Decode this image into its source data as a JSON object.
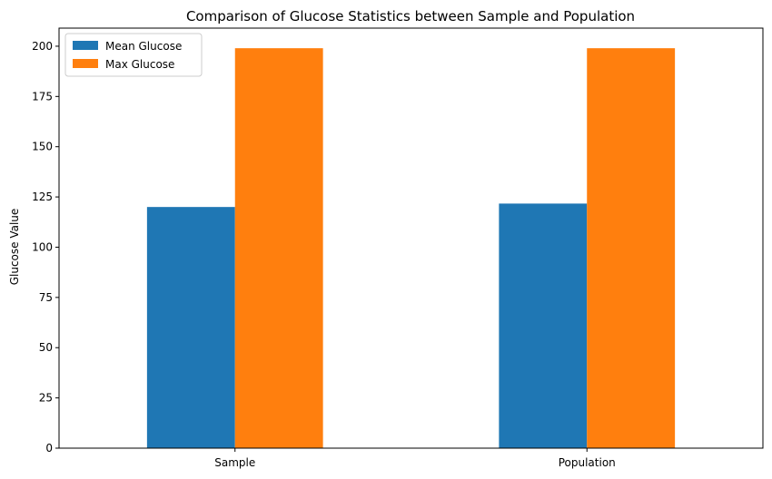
{
  "chart_data": {
    "type": "bar",
    "title": "Comparison of Glucose Statistics between Sample and Population",
    "xlabel": "",
    "ylabel": "Glucose Value",
    "categories": [
      "Sample",
      "Population"
    ],
    "series": [
      {
        "name": "Mean Glucose",
        "values": [
          120,
          121.7
        ],
        "color": "#1f77b4"
      },
      {
        "name": "Max Glucose",
        "values": [
          199,
          199
        ],
        "color": "#ff7f0e"
      }
    ],
    "ylim": [
      0,
      209
    ],
    "yticks": [
      0,
      25,
      50,
      75,
      100,
      125,
      150,
      175,
      200
    ],
    "ytick_labels": [
      "0",
      "25",
      "50",
      "75",
      "100",
      "125",
      "150",
      "175",
      "200"
    ],
    "grid": false,
    "legend_position": "top-left"
  }
}
